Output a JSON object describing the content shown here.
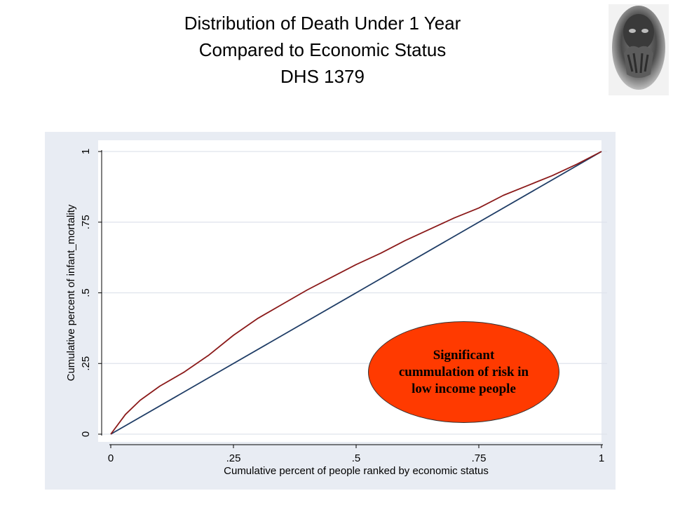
{
  "title": {
    "line1": "Distribution of Death Under 1 Year",
    "line2": "Compared to Economic Status",
    "line3": "DHS 1379"
  },
  "colors": {
    "panel_background": "#e8ecf3",
    "plot_background": "#ffffff",
    "gridline": "#dfe3ec",
    "concentration_curve": "#8b1a1a",
    "equality_line": "#1f3d66",
    "callout_fill": "#ff3a00"
  },
  "callout": {
    "text": "Significant cummulation of risk in low income people"
  },
  "chart_data": {
    "type": "line",
    "xlabel": "Cumulative percent of people ranked by economic status",
    "ylabel": "Cumulative percent of infant_mortality",
    "xlim": [
      0,
      1
    ],
    "ylim": [
      0,
      1
    ],
    "x_ticks": [
      "0",
      ".25",
      ".5",
      ".75",
      "1"
    ],
    "y_ticks": [
      "0",
      ".25",
      ".5",
      ".75",
      "1"
    ],
    "grid": "horizontal",
    "series": [
      {
        "color": "#8b1a1a",
        "x": [
          0,
          0.03,
          0.06,
          0.1,
          0.15,
          0.2,
          0.25,
          0.3,
          0.35,
          0.4,
          0.45,
          0.5,
          0.55,
          0.6,
          0.65,
          0.7,
          0.75,
          0.8,
          0.85,
          0.9,
          0.95,
          1
        ],
        "y": [
          0,
          0.07,
          0.12,
          0.17,
          0.22,
          0.28,
          0.35,
          0.41,
          0.46,
          0.51,
          0.555,
          0.6,
          0.64,
          0.685,
          0.725,
          0.765,
          0.8,
          0.845,
          0.88,
          0.915,
          0.955,
          1
        ]
      },
      {
        "color": "#1f3d66",
        "x": [
          0,
          1
        ],
        "y": [
          0,
          1
        ]
      }
    ]
  }
}
